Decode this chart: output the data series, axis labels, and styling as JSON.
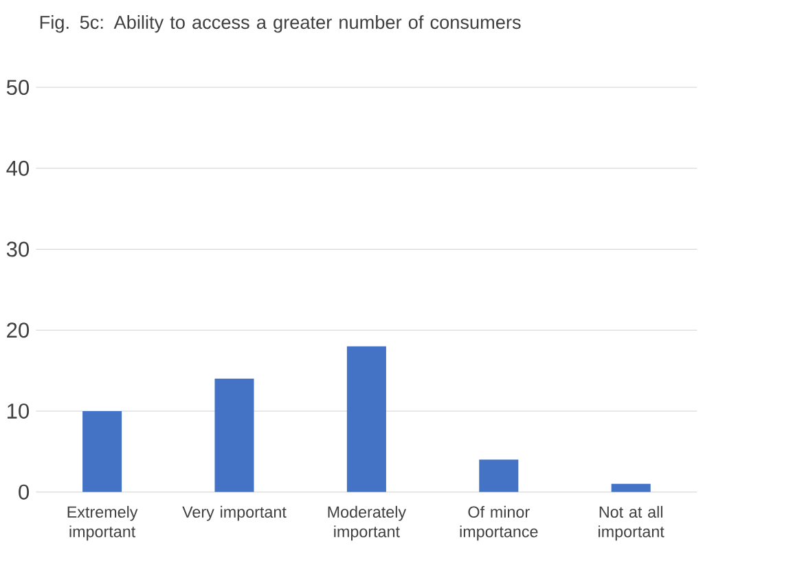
{
  "chart_data": {
    "type": "bar",
    "title": "Fig. 5c: Ability to access a greater number of consumers",
    "categories": [
      "Extremely important",
      "Very important",
      "Moderately important",
      "Of minor importance",
      "Not at all important"
    ],
    "values": [
      10,
      14,
      18,
      4,
      1
    ],
    "color": "#4472c4",
    "ylim": [
      0,
      50
    ],
    "yticks": [
      0,
      10,
      20,
      30,
      40,
      50
    ],
    "grid": "y"
  }
}
